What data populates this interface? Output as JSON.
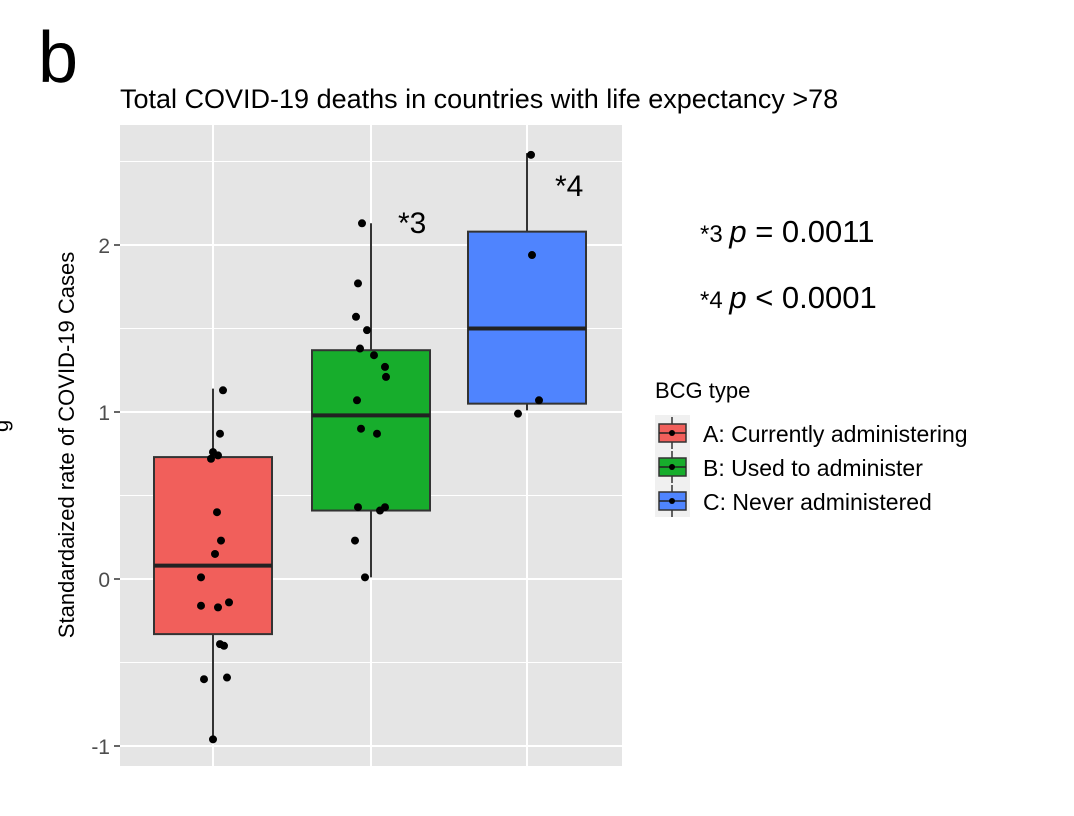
{
  "panel_label": "b",
  "left_fragment": "g",
  "chart_data": {
    "type": "box",
    "title": "Total COVID-19 deaths in countries with life expectancy >78",
    "xlabel": "",
    "ylabel": "Standardaized rate of COVID-19 Cases",
    "ylim": [
      -1.1,
      2.75
    ],
    "yticks": [
      -1,
      0,
      1,
      2
    ],
    "ytick_labels": [
      "-1",
      "0",
      "1",
      "2"
    ],
    "grid": true,
    "legend": {
      "title": "BCG type",
      "placement": "right",
      "entries": [
        "A: Currently administering",
        "B: Used to administer",
        "C: Never administered"
      ]
    },
    "groups": [
      {
        "name": "A: Currently administering",
        "color": "#F15F5B",
        "whisker_low": -0.96,
        "q1": -0.33,
        "median": 0.08,
        "q3": 0.73,
        "whisker_high": 1.14,
        "points": [
          1.13,
          0.87,
          0.76,
          0.74,
          0.72,
          0.4,
          0.23,
          0.15,
          0.01,
          -0.16,
          -0.17,
          -0.14,
          -0.4,
          -0.39,
          -0.59,
          -0.6,
          -0.96
        ],
        "jitter": [
          10,
          7,
          0,
          5,
          -2,
          4,
          8,
          2,
          -12,
          -12,
          5,
          16,
          11,
          7,
          14,
          -9,
          0
        ]
      },
      {
        "name": "B: Used to administer",
        "color": "#17AD2C",
        "whisker_low": 0.01,
        "q1": 0.41,
        "median": 0.98,
        "q3": 1.37,
        "whisker_high": 2.13,
        "points": [
          2.13,
          1.77,
          1.57,
          1.49,
          1.38,
          1.34,
          1.27,
          1.21,
          1.07,
          0.9,
          0.87,
          0.43,
          0.41,
          0.43,
          0.23,
          0.01
        ],
        "jitter": [
          -9,
          -13,
          -15,
          -4,
          -11,
          3,
          14,
          15,
          -14,
          -10,
          6,
          14,
          9,
          -13,
          -16,
          -6
        ]
      },
      {
        "name": "C: Never administered",
        "color": "#4F84FE",
        "whisker_low": 1.01,
        "q1": 1.05,
        "median": 1.5,
        "q3": 2.08,
        "whisker_high": 2.55,
        "points": [
          2.54,
          1.94,
          1.07,
          0.99
        ],
        "jitter": [
          4,
          5,
          12,
          -9
        ]
      }
    ],
    "annotations": [
      {
        "group": "B: Used to administer",
        "text": "*3"
      },
      {
        "group": "C: Never administered",
        "text": "*4"
      }
    ],
    "stats": [
      {
        "mark": "*3",
        "p_symbol": "p",
        "rest": "= 0.0011"
      },
      {
        "mark": "*4",
        "p_symbol": "p",
        "rest": "< 0.0001"
      }
    ]
  }
}
